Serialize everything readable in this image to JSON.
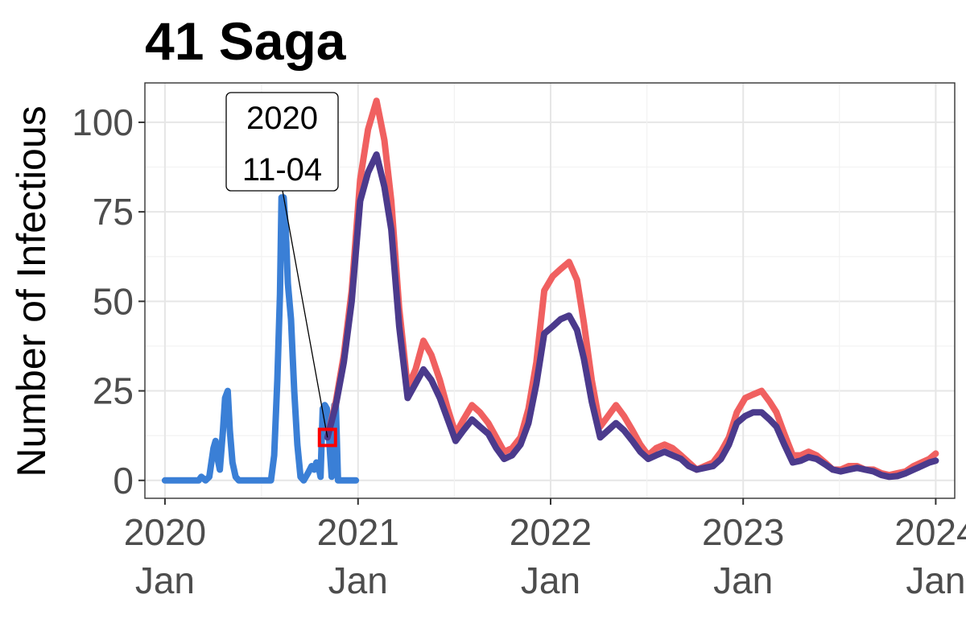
{
  "chart_data": {
    "type": "line",
    "title": "41 Saga",
    "xlabel": "",
    "ylabel": "Number of Infectious",
    "x_range": [
      "2019-11-24",
      "2024-02-06"
    ],
    "ylim": [
      -5,
      111
    ],
    "yticks": [
      0,
      25,
      50,
      75,
      100
    ],
    "ytick_labels": [
      "0",
      "25",
      "50",
      "75",
      "100"
    ],
    "xticks": [
      {
        "date": "2020-01-01",
        "year": "2020",
        "month": "Jan"
      },
      {
        "date": "2021-01-01",
        "year": "2021",
        "month": "Jan"
      },
      {
        "date": "2022-01-01",
        "year": "2022",
        "month": "Jan"
      },
      {
        "date": "2023-01-01",
        "year": "2023",
        "month": "Jan"
      },
      {
        "date": "2024-01-01",
        "year": "2024",
        "month": "Jan"
      }
    ],
    "grid": true,
    "legend": "none",
    "series": [
      {
        "color": "#3a7fd6",
        "points": [
          [
            "2020-01-01",
            0
          ],
          [
            "2020-02-15",
            0
          ],
          [
            "2020-03-05",
            0
          ],
          [
            "2020-03-10",
            1
          ],
          [
            "2020-03-18",
            0
          ],
          [
            "2020-03-25",
            1
          ],
          [
            "2020-04-02",
            9
          ],
          [
            "2020-04-06",
            11
          ],
          [
            "2020-04-10",
            6
          ],
          [
            "2020-04-14",
            3
          ],
          [
            "2020-04-20",
            14
          ],
          [
            "2020-04-24",
            23
          ],
          [
            "2020-04-29",
            25
          ],
          [
            "2020-05-03",
            14
          ],
          [
            "2020-05-08",
            5
          ],
          [
            "2020-05-14",
            1
          ],
          [
            "2020-05-20",
            0
          ],
          [
            "2020-06-10",
            0
          ],
          [
            "2020-07-10",
            0
          ],
          [
            "2020-07-20",
            0
          ],
          [
            "2020-07-26",
            7
          ],
          [
            "2020-08-01",
            28
          ],
          [
            "2020-08-06",
            52
          ],
          [
            "2020-08-09",
            79
          ],
          [
            "2020-08-13",
            79
          ],
          [
            "2020-08-17",
            70
          ],
          [
            "2020-08-21",
            55
          ],
          [
            "2020-08-27",
            45
          ],
          [
            "2020-09-02",
            25
          ],
          [
            "2020-09-08",
            10
          ],
          [
            "2020-09-14",
            1
          ],
          [
            "2020-09-20",
            0
          ],
          [
            "2020-09-28",
            2
          ],
          [
            "2020-10-05",
            4
          ],
          [
            "2020-10-10",
            3
          ],
          [
            "2020-10-14",
            5
          ],
          [
            "2020-10-18",
            4
          ],
          [
            "2020-10-22",
            1
          ],
          [
            "2020-10-26",
            20
          ],
          [
            "2020-10-30",
            21
          ],
          [
            "2020-11-03",
            20
          ],
          [
            "2020-11-07",
            12
          ],
          [
            "2020-11-12",
            1
          ],
          [
            "2020-11-17",
            21
          ],
          [
            "2020-11-20",
            21
          ],
          [
            "2020-11-24",
            0
          ],
          [
            "2020-12-15",
            0
          ],
          [
            "2020-12-28",
            0
          ]
        ]
      },
      {
        "color": "#f06060",
        "points": [
          [
            "2020-11-04",
            12
          ],
          [
            "2020-11-20",
            22
          ],
          [
            "2020-12-05",
            35
          ],
          [
            "2020-12-20",
            53
          ],
          [
            "2021-01-05",
            84
          ],
          [
            "2021-01-20",
            98
          ],
          [
            "2021-02-05",
            106
          ],
          [
            "2021-02-20",
            95
          ],
          [
            "2021-03-05",
            78
          ],
          [
            "2021-03-20",
            48
          ],
          [
            "2021-04-05",
            26
          ],
          [
            "2021-04-20",
            31
          ],
          [
            "2021-05-05",
            39
          ],
          [
            "2021-05-20",
            35
          ],
          [
            "2021-06-05",
            28
          ],
          [
            "2021-06-20",
            20
          ],
          [
            "2021-07-05",
            13
          ],
          [
            "2021-07-20",
            17
          ],
          [
            "2021-08-05",
            21
          ],
          [
            "2021-08-20",
            19
          ],
          [
            "2021-09-05",
            16
          ],
          [
            "2021-09-20",
            12
          ],
          [
            "2021-10-05",
            8
          ],
          [
            "2021-10-20",
            9
          ],
          [
            "2021-11-05",
            12
          ],
          [
            "2021-11-20",
            20
          ],
          [
            "2021-12-05",
            33
          ],
          [
            "2021-12-20",
            53
          ],
          [
            "2022-01-05",
            57
          ],
          [
            "2022-01-20",
            59
          ],
          [
            "2022-02-05",
            61
          ],
          [
            "2022-02-20",
            56
          ],
          [
            "2022-03-05",
            44
          ],
          [
            "2022-03-20",
            28
          ],
          [
            "2022-04-05",
            15
          ],
          [
            "2022-04-20",
            18
          ],
          [
            "2022-05-05",
            21
          ],
          [
            "2022-05-20",
            18
          ],
          [
            "2022-06-05",
            14
          ],
          [
            "2022-06-20",
            10
          ],
          [
            "2022-07-05",
            7
          ],
          [
            "2022-07-20",
            9
          ],
          [
            "2022-08-05",
            10
          ],
          [
            "2022-08-20",
            9
          ],
          [
            "2022-09-05",
            7
          ],
          [
            "2022-09-20",
            5
          ],
          [
            "2022-10-05",
            3
          ],
          [
            "2022-10-20",
            4
          ],
          [
            "2022-11-05",
            5
          ],
          [
            "2022-11-20",
            8
          ],
          [
            "2022-12-05",
            12
          ],
          [
            "2022-12-20",
            19
          ],
          [
            "2023-01-05",
            23
          ],
          [
            "2023-01-20",
            24
          ],
          [
            "2023-02-05",
            25
          ],
          [
            "2023-02-20",
            22
          ],
          [
            "2023-03-05",
            19
          ],
          [
            "2023-03-20",
            13
          ],
          [
            "2023-04-05",
            7
          ],
          [
            "2023-04-20",
            7
          ],
          [
            "2023-05-05",
            8
          ],
          [
            "2023-05-20",
            7
          ],
          [
            "2023-06-05",
            5
          ],
          [
            "2023-06-20",
            3
          ],
          [
            "2023-07-05",
            3
          ],
          [
            "2023-07-20",
            4
          ],
          [
            "2023-08-05",
            4
          ],
          [
            "2023-08-20",
            3
          ],
          [
            "2023-09-05",
            3
          ],
          [
            "2023-09-20",
            2
          ],
          [
            "2023-10-05",
            1.5
          ],
          [
            "2023-10-20",
            2
          ],
          [
            "2023-11-05",
            2.5
          ],
          [
            "2023-11-20",
            4
          ],
          [
            "2023-12-05",
            5
          ],
          [
            "2023-12-20",
            6
          ],
          [
            "2024-01-01",
            7.5
          ]
        ]
      },
      {
        "color": "#4b3a8c",
        "points": [
          [
            "2020-11-04",
            12
          ],
          [
            "2020-11-20",
            21
          ],
          [
            "2020-12-05",
            33
          ],
          [
            "2020-12-20",
            50
          ],
          [
            "2021-01-05",
            78
          ],
          [
            "2021-01-20",
            86
          ],
          [
            "2021-02-05",
            91
          ],
          [
            "2021-02-20",
            82
          ],
          [
            "2021-03-05",
            70
          ],
          [
            "2021-03-20",
            43
          ],
          [
            "2021-04-05",
            23
          ],
          [
            "2021-04-20",
            27
          ],
          [
            "2021-05-05",
            31
          ],
          [
            "2021-05-20",
            28
          ],
          [
            "2021-06-05",
            23
          ],
          [
            "2021-06-20",
            17
          ],
          [
            "2021-07-05",
            11
          ],
          [
            "2021-07-20",
            14
          ],
          [
            "2021-08-05",
            17
          ],
          [
            "2021-08-20",
            15
          ],
          [
            "2021-09-05",
            13
          ],
          [
            "2021-09-20",
            9
          ],
          [
            "2021-10-05",
            6
          ],
          [
            "2021-10-20",
            7
          ],
          [
            "2021-11-05",
            10
          ],
          [
            "2021-11-20",
            16
          ],
          [
            "2021-12-05",
            27
          ],
          [
            "2021-12-20",
            41
          ],
          [
            "2022-01-05",
            43
          ],
          [
            "2022-01-20",
            45
          ],
          [
            "2022-02-05",
            46
          ],
          [
            "2022-02-20",
            42
          ],
          [
            "2022-03-05",
            34
          ],
          [
            "2022-03-20",
            22
          ],
          [
            "2022-04-05",
            12
          ],
          [
            "2022-04-20",
            14
          ],
          [
            "2022-05-05",
            16
          ],
          [
            "2022-05-20",
            14
          ],
          [
            "2022-06-05",
            11
          ],
          [
            "2022-06-20",
            8
          ],
          [
            "2022-07-05",
            6
          ],
          [
            "2022-07-20",
            7
          ],
          [
            "2022-08-05",
            8
          ],
          [
            "2022-08-20",
            7
          ],
          [
            "2022-09-05",
            6
          ],
          [
            "2022-09-20",
            4
          ],
          [
            "2022-10-05",
            3
          ],
          [
            "2022-10-20",
            3.5
          ],
          [
            "2022-11-05",
            4
          ],
          [
            "2022-11-20",
            6
          ],
          [
            "2022-12-05",
            10
          ],
          [
            "2022-12-20",
            16
          ],
          [
            "2023-01-05",
            18
          ],
          [
            "2023-01-20",
            19
          ],
          [
            "2023-02-05",
            19
          ],
          [
            "2023-02-20",
            17
          ],
          [
            "2023-03-05",
            15
          ],
          [
            "2023-03-20",
            10
          ],
          [
            "2023-04-05",
            5
          ],
          [
            "2023-04-20",
            5.5
          ],
          [
            "2023-05-05",
            6.5
          ],
          [
            "2023-05-20",
            6
          ],
          [
            "2023-06-05",
            4.5
          ],
          [
            "2023-06-20",
            3
          ],
          [
            "2023-07-05",
            2.5
          ],
          [
            "2023-07-20",
            3
          ],
          [
            "2023-08-05",
            3.5
          ],
          [
            "2023-08-20",
            3
          ],
          [
            "2023-09-05",
            2.5
          ],
          [
            "2023-09-20",
            1.5
          ],
          [
            "2023-10-05",
            1
          ],
          [
            "2023-10-20",
            1.2
          ],
          [
            "2023-11-05",
            2
          ],
          [
            "2023-11-20",
            3
          ],
          [
            "2023-12-05",
            4
          ],
          [
            "2023-12-20",
            5
          ],
          [
            "2024-01-01",
            5.5
          ]
        ]
      }
    ],
    "annotation": {
      "date": "2020-11-04",
      "value": 12,
      "line1": "2020",
      "line2": "11-04",
      "marker_color": "#ff0000"
    }
  }
}
